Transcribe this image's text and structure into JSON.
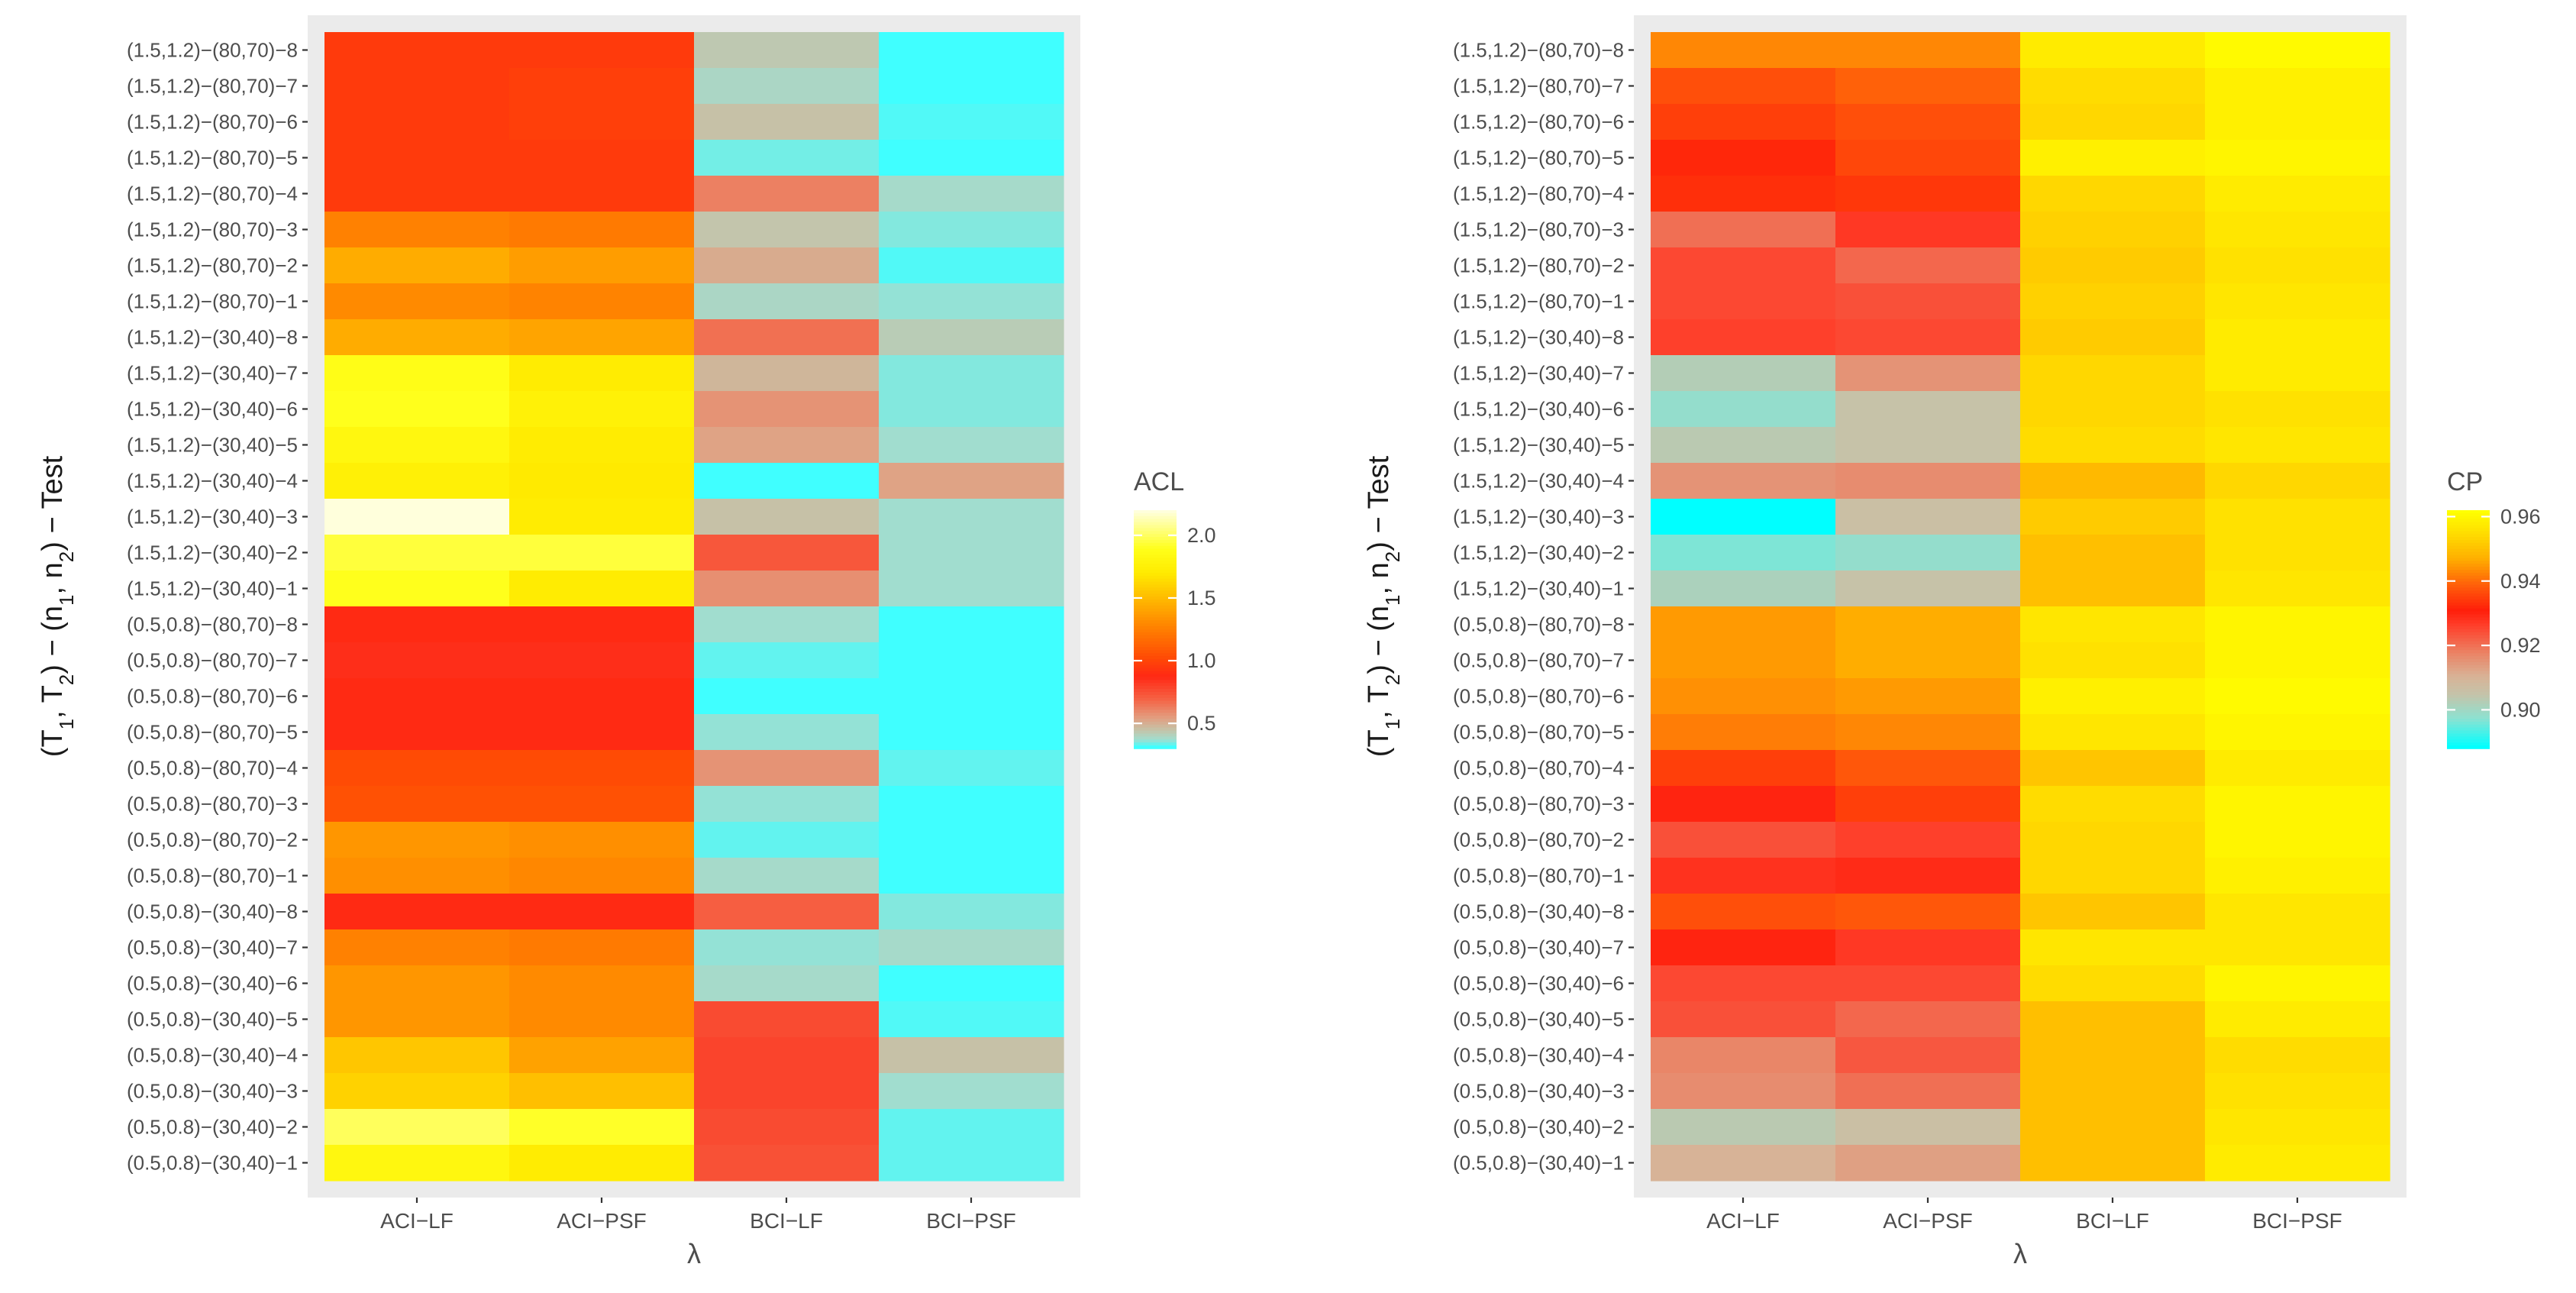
{
  "chart_data": [
    {
      "type": "heatmap",
      "title": "",
      "xlabel": "λ",
      "ylabel": "(T1, T2) − (n1, n2) − Test",
      "x_categories": [
        "ACI−LF",
        "ACI−PSF",
        "BCI−LF",
        "BCI−PSF"
      ],
      "y_categories": [
        "(1.5,1.2)−(80,70)−8",
        "(1.5,1.2)−(80,70)−7",
        "(1.5,1.2)−(80,70)−6",
        "(1.5,1.2)−(80,70)−5",
        "(1.5,1.2)−(80,70)−4",
        "(1.5,1.2)−(80,70)−3",
        "(1.5,1.2)−(80,70)−2",
        "(1.5,1.2)−(80,70)−1",
        "(1.5,1.2)−(30,40)−8",
        "(1.5,1.2)−(30,40)−7",
        "(1.5,1.2)−(30,40)−6",
        "(1.5,1.2)−(30,40)−5",
        "(1.5,1.2)−(30,40)−4",
        "(1.5,1.2)−(30,40)−3",
        "(1.5,1.2)−(30,40)−2",
        "(1.5,1.2)−(30,40)−1",
        "(0.5,0.8)−(80,70)−8",
        "(0.5,0.8)−(80,70)−7",
        "(0.5,0.8)−(80,70)−6",
        "(0.5,0.8)−(80,70)−5",
        "(0.5,0.8)−(80,70)−4",
        "(0.5,0.8)−(80,70)−3",
        "(0.5,0.8)−(80,70)−2",
        "(0.5,0.8)−(80,70)−1",
        "(0.5,0.8)−(30,40)−8",
        "(0.5,0.8)−(30,40)−7",
        "(0.5,0.8)−(30,40)−6",
        "(0.5,0.8)−(30,40)−5",
        "(0.5,0.8)−(30,40)−4",
        "(0.5,0.8)−(30,40)−3",
        "(0.5,0.8)−(30,40)−2",
        "(0.5,0.8)−(30,40)−1"
      ],
      "legend": {
        "title": "ACL",
        "ticks": [
          0.5,
          1.0,
          1.5,
          2.0
        ],
        "tick_labels": [
          "0.5",
          "1.0",
          "1.5",
          "2.0"
        ],
        "range": [
          0.3,
          2.2
        ]
      },
      "values": [
        [
          0.95,
          0.95,
          0.42,
          0.3
        ],
        [
          0.95,
          0.97,
          0.38,
          0.24
        ],
        [
          0.95,
          0.97,
          0.44,
          0.31
        ],
        [
          0.95,
          0.95,
          0.33,
          0.25
        ],
        [
          0.95,
          0.95,
          0.61,
          0.37
        ],
        [
          1.26,
          1.23,
          0.43,
          0.34
        ],
        [
          1.44,
          1.38,
          0.5,
          0.31
        ],
        [
          1.3,
          1.27,
          0.38,
          0.35
        ],
        [
          1.44,
          1.41,
          0.65,
          0.41
        ],
        [
          1.88,
          1.72,
          0.47,
          0.34
        ],
        [
          1.9,
          1.76,
          0.56,
          0.34
        ],
        [
          1.82,
          1.72,
          0.52,
          0.36
        ],
        [
          1.75,
          1.7,
          0.13,
          0.52
        ],
        [
          2.2,
          1.72,
          0.44,
          0.36
        ],
        [
          1.95,
          1.95,
          0.72,
          0.36
        ],
        [
          1.9,
          1.72,
          0.57,
          0.36
        ],
        [
          0.88,
          0.88,
          0.36,
          0.27
        ],
        [
          0.85,
          0.85,
          0.32,
          0.24
        ],
        [
          0.88,
          0.88,
          0.25,
          0.24
        ],
        [
          0.88,
          0.88,
          0.35,
          0.24
        ],
        [
          1.02,
          1.02,
          0.56,
          0.32
        ],
        [
          1.05,
          1.05,
          0.35,
          0.24
        ],
        [
          1.35,
          1.32,
          0.32,
          0.24
        ],
        [
          1.32,
          1.29,
          0.37,
          0.24
        ],
        [
          0.88,
          0.88,
          0.7,
          0.34
        ],
        [
          1.26,
          1.23,
          0.35,
          0.37
        ],
        [
          1.35,
          1.3,
          0.37,
          0.25
        ],
        [
          1.35,
          1.3,
          0.76,
          0.31
        ],
        [
          1.55,
          1.4,
          0.78,
          0.44
        ],
        [
          1.6,
          1.52,
          0.78,
          0.36
        ],
        [
          2.0,
          1.92,
          0.76,
          0.32
        ],
        [
          1.82,
          1.72,
          0.74,
          0.32
        ]
      ]
    },
    {
      "type": "heatmap",
      "title": "",
      "xlabel": "λ",
      "ylabel": "(T1, T2) − (n1, n2) − Test",
      "x_categories": [
        "ACI−LF",
        "ACI−PSF",
        "BCI−LF",
        "BCI−PSF"
      ],
      "y_categories": [
        "(1.5,1.2)−(80,70)−8",
        "(1.5,1.2)−(80,70)−7",
        "(1.5,1.2)−(80,70)−6",
        "(1.5,1.2)−(80,70)−5",
        "(1.5,1.2)−(80,70)−4",
        "(1.5,1.2)−(80,70)−3",
        "(1.5,1.2)−(80,70)−2",
        "(1.5,1.2)−(80,70)−1",
        "(1.5,1.2)−(30,40)−8",
        "(1.5,1.2)−(30,40)−7",
        "(1.5,1.2)−(30,40)−6",
        "(1.5,1.2)−(30,40)−5",
        "(1.5,1.2)−(30,40)−4",
        "(1.5,1.2)−(30,40)−3",
        "(1.5,1.2)−(30,40)−2",
        "(1.5,1.2)−(30,40)−1",
        "(0.5,0.8)−(80,70)−8",
        "(0.5,0.8)−(80,70)−7",
        "(0.5,0.8)−(80,70)−6",
        "(0.5,0.8)−(80,70)−5",
        "(0.5,0.8)−(80,70)−4",
        "(0.5,0.8)−(80,70)−3",
        "(0.5,0.8)−(80,70)−2",
        "(0.5,0.8)−(80,70)−1",
        "(0.5,0.8)−(30,40)−8",
        "(0.5,0.8)−(30,40)−7",
        "(0.5,0.8)−(30,40)−6",
        "(0.5,0.8)−(30,40)−5",
        "(0.5,0.8)−(30,40)−4",
        "(0.5,0.8)−(30,40)−3",
        "(0.5,0.8)−(30,40)−2",
        "(0.5,0.8)−(30,40)−1"
      ],
      "legend": {
        "title": "CP",
        "ticks": [
          0.9,
          0.92,
          0.94,
          0.96
        ],
        "tick_labels": [
          "0.90",
          "0.92",
          "0.94",
          "0.96"
        ],
        "range": [
          0.888,
          0.962
        ]
      },
      "values": [
        [
          0.943,
          0.943,
          0.958,
          0.961
        ],
        [
          0.937,
          0.939,
          0.955,
          0.959
        ],
        [
          0.935,
          0.937,
          0.954,
          0.959
        ],
        [
          0.932,
          0.936,
          0.959,
          0.96
        ],
        [
          0.933,
          0.934,
          0.954,
          0.958
        ],
        [
          0.92,
          0.927,
          0.953,
          0.957
        ],
        [
          0.925,
          0.921,
          0.952,
          0.956
        ],
        [
          0.925,
          0.924,
          0.953,
          0.957
        ],
        [
          0.926,
          0.925,
          0.952,
          0.958
        ],
        [
          0.902,
          0.915,
          0.954,
          0.958
        ],
        [
          0.898,
          0.905,
          0.954,
          0.956
        ],
        [
          0.903,
          0.905,
          0.955,
          0.957
        ],
        [
          0.915,
          0.916,
          0.949,
          0.954
        ],
        [
          0.888,
          0.906,
          0.952,
          0.956
        ],
        [
          0.896,
          0.898,
          0.95,
          0.956
        ],
        [
          0.901,
          0.905,
          0.95,
          0.957
        ],
        [
          0.945,
          0.947,
          0.957,
          0.96
        ],
        [
          0.945,
          0.947,
          0.956,
          0.96
        ],
        [
          0.944,
          0.945,
          0.959,
          0.961
        ],
        [
          0.942,
          0.943,
          0.957,
          0.96
        ],
        [
          0.935,
          0.938,
          0.951,
          0.958
        ],
        [
          0.93,
          0.935,
          0.955,
          0.96
        ],
        [
          0.924,
          0.926,
          0.954,
          0.96
        ],
        [
          0.928,
          0.929,
          0.954,
          0.959
        ],
        [
          0.937,
          0.938,
          0.951,
          0.957
        ],
        [
          0.93,
          0.927,
          0.957,
          0.957
        ],
        [
          0.925,
          0.925,
          0.955,
          0.96
        ],
        [
          0.924,
          0.921,
          0.95,
          0.958
        ],
        [
          0.917,
          0.923,
          0.95,
          0.955
        ],
        [
          0.916,
          0.92,
          0.95,
          0.956
        ],
        [
          0.903,
          0.906,
          0.95,
          0.957
        ],
        [
          0.91,
          0.913,
          0.95,
          0.958
        ]
      ]
    }
  ]
}
